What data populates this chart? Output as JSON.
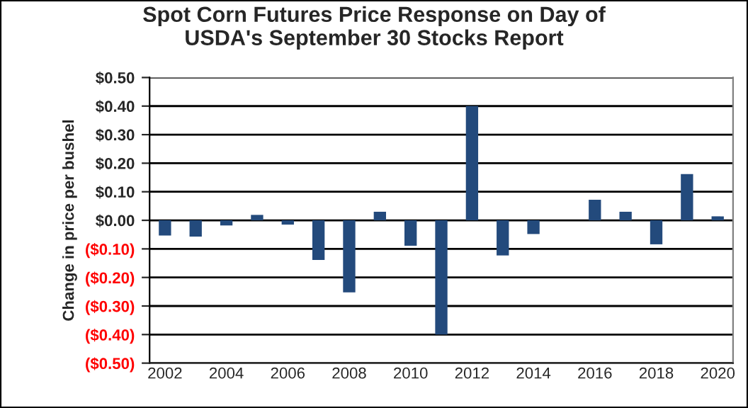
{
  "chart_data": {
    "type": "bar",
    "title": "Spot Corn Futures Price Response on Day of\nUSDA's September 30 Stocks Report",
    "ylabel": "Change in price per bushel",
    "categories": [
      "2002",
      null,
      "2004",
      null,
      "2006",
      null,
      "2008",
      null,
      "2010",
      null,
      "2012",
      null,
      "2014",
      null,
      "2016",
      null,
      "2018",
      null,
      "2020"
    ],
    "values": [
      -0.053,
      -0.057,
      -0.018,
      0.019,
      -0.015,
      -0.139,
      -0.252,
      0.03,
      -0.089,
      -0.4,
      0.4,
      -0.123,
      -0.048,
      0,
      0.072,
      0.03,
      -0.084,
      0.162,
      0.014
    ],
    "color": "#234a7c",
    "ylim": [
      -0.5,
      0.5
    ],
    "yticks": [
      {
        "value": -0.5,
        "label": "($0.50)"
      },
      {
        "value": -0.4,
        "label": "($0.40)"
      },
      {
        "value": -0.3,
        "label": "($0.30)"
      },
      {
        "value": -0.2,
        "label": "($0.20)"
      },
      {
        "value": -0.1,
        "label": "($0.10)"
      },
      {
        "value": 0,
        "label": "$0.00"
      },
      {
        "value": 0.1,
        "label": "$0.10"
      },
      {
        "value": 0.2,
        "label": "$0.20"
      },
      {
        "value": 0.3,
        "label": "$0.30"
      },
      {
        "value": 0.4,
        "label": "$0.40"
      },
      {
        "value": 0.5,
        "label": "$0.50"
      }
    ],
    "grid": "y"
  }
}
